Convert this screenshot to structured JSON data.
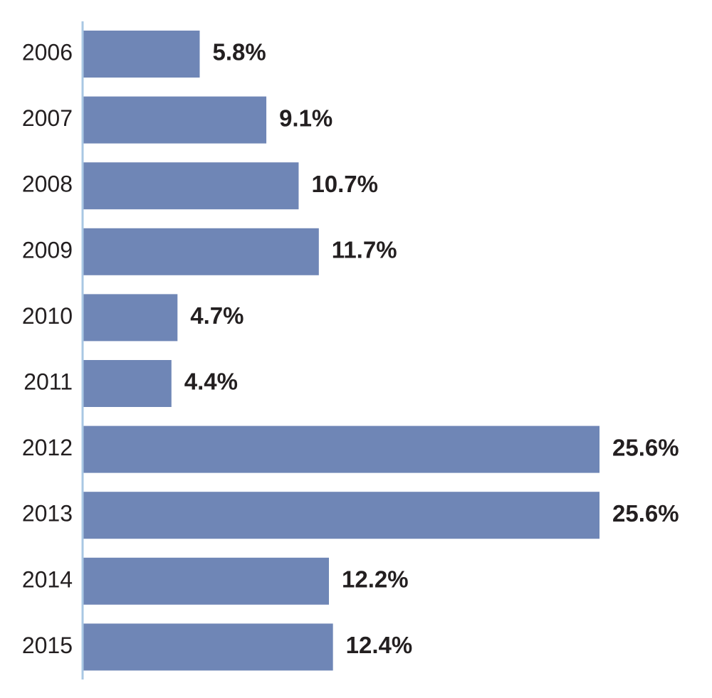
{
  "chart_data": {
    "type": "bar",
    "orientation": "horizontal",
    "title": "",
    "xlabel": "",
    "ylabel": "",
    "categories": [
      "2006",
      "2007",
      "2008",
      "2009",
      "2010",
      "2011",
      "2012",
      "2013",
      "2014",
      "2015"
    ],
    "values": [
      5.8,
      9.1,
      10.7,
      11.7,
      4.7,
      4.4,
      25.6,
      25.6,
      12.2,
      12.4
    ],
    "value_labels": [
      "5.8%",
      "9.1%",
      "10.7%",
      "11.7%",
      "4.7%",
      "4.4%",
      "25.6%",
      "25.6%",
      "12.2%",
      "12.4%"
    ],
    "xlim": [
      0,
      25.6
    ],
    "grid": false,
    "legend": "none",
    "colors": {
      "bar": "#6f86b6",
      "axis": "#a9c7e3",
      "text": "#231f20"
    }
  }
}
